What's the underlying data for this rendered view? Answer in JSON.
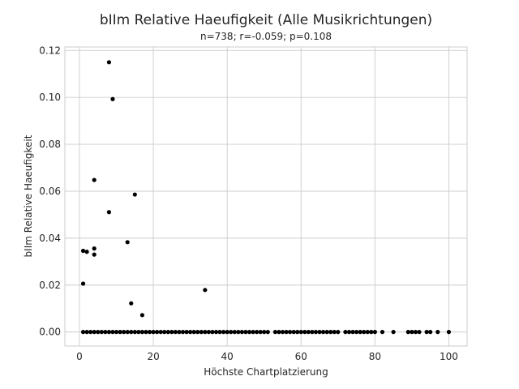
{
  "chart_data": {
    "type": "scatter",
    "title": "bIIm Relative Haeufigkeit (Alle Musikrichtungen)",
    "subtitle": "n=738; r=-0.059; p=0.108",
    "xlabel": "Höchste Chartplatzierung",
    "ylabel": "bIIm Relative Haeufigkeit",
    "xlim": [
      -3.95,
      104.95
    ],
    "ylim": [
      -0.006,
      0.1215
    ],
    "xticks": [
      0,
      20,
      40,
      60,
      80,
      100
    ],
    "yticks": [
      0.0,
      0.02,
      0.04,
      0.06,
      0.08,
      0.1,
      0.12
    ],
    "xtick_labels": [
      "0",
      "20",
      "40",
      "60",
      "80",
      "100"
    ],
    "ytick_labels": [
      "0.00",
      "0.02",
      "0.04",
      "0.06",
      "0.08",
      "0.10",
      "0.12"
    ],
    "grid": true,
    "marker_color": "#000000",
    "series": [
      {
        "points": [
          [
            8,
            0.115
          ],
          [
            9,
            0.0993
          ],
          [
            4,
            0.0648
          ],
          [
            15,
            0.0586
          ],
          [
            8,
            0.0511
          ],
          [
            13,
            0.0383
          ],
          [
            4,
            0.0356
          ],
          [
            1,
            0.0346
          ],
          [
            2,
            0.0342
          ],
          [
            4,
            0.033
          ],
          [
            1,
            0.0206
          ],
          [
            34,
            0.0179
          ],
          [
            14,
            0.0122
          ],
          [
            17,
            0.0072
          ],
          [
            1,
            0
          ],
          [
            2,
            0
          ],
          [
            3,
            0
          ],
          [
            4,
            0
          ],
          [
            5,
            0
          ],
          [
            6,
            0
          ],
          [
            7,
            0
          ],
          [
            8,
            0
          ],
          [
            9,
            0
          ],
          [
            10,
            0
          ],
          [
            11,
            0
          ],
          [
            12,
            0
          ],
          [
            13,
            0
          ],
          [
            14,
            0
          ],
          [
            15,
            0
          ],
          [
            16,
            0
          ],
          [
            17,
            0
          ],
          [
            18,
            0
          ],
          [
            19,
            0
          ],
          [
            20,
            0
          ],
          [
            21,
            0
          ],
          [
            22,
            0
          ],
          [
            23,
            0
          ],
          [
            24,
            0
          ],
          [
            25,
            0
          ],
          [
            26,
            0
          ],
          [
            27,
            0
          ],
          [
            28,
            0
          ],
          [
            29,
            0
          ],
          [
            30,
            0
          ],
          [
            31,
            0
          ],
          [
            32,
            0
          ],
          [
            33,
            0
          ],
          [
            34,
            0
          ],
          [
            35,
            0
          ],
          [
            36,
            0
          ],
          [
            37,
            0
          ],
          [
            38,
            0
          ],
          [
            39,
            0
          ],
          [
            40,
            0
          ],
          [
            41,
            0
          ],
          [
            42,
            0
          ],
          [
            43,
            0
          ],
          [
            44,
            0
          ],
          [
            45,
            0
          ],
          [
            46,
            0
          ],
          [
            47,
            0
          ],
          [
            48,
            0
          ],
          [
            49,
            0
          ],
          [
            50,
            0
          ],
          [
            51,
            0
          ],
          [
            53,
            0
          ],
          [
            54,
            0
          ],
          [
            55,
            0
          ],
          [
            56,
            0
          ],
          [
            57,
            0
          ],
          [
            58,
            0
          ],
          [
            59,
            0
          ],
          [
            60,
            0
          ],
          [
            61,
            0
          ],
          [
            62,
            0
          ],
          [
            63,
            0
          ],
          [
            64,
            0
          ],
          [
            65,
            0
          ],
          [
            66,
            0
          ],
          [
            67,
            0
          ],
          [
            68,
            0
          ],
          [
            69,
            0
          ],
          [
            70,
            0
          ],
          [
            72,
            0
          ],
          [
            73,
            0
          ],
          [
            74,
            0
          ],
          [
            75,
            0
          ],
          [
            76,
            0
          ],
          [
            77,
            0
          ],
          [
            78,
            0
          ],
          [
            79,
            0
          ],
          [
            80,
            0
          ],
          [
            82,
            0
          ],
          [
            85,
            0
          ],
          [
            89,
            0
          ],
          [
            90,
            0
          ],
          [
            91,
            0
          ],
          [
            92,
            0
          ],
          [
            94,
            0
          ],
          [
            95,
            0
          ],
          [
            97,
            0
          ],
          [
            100,
            0
          ]
        ]
      }
    ]
  }
}
